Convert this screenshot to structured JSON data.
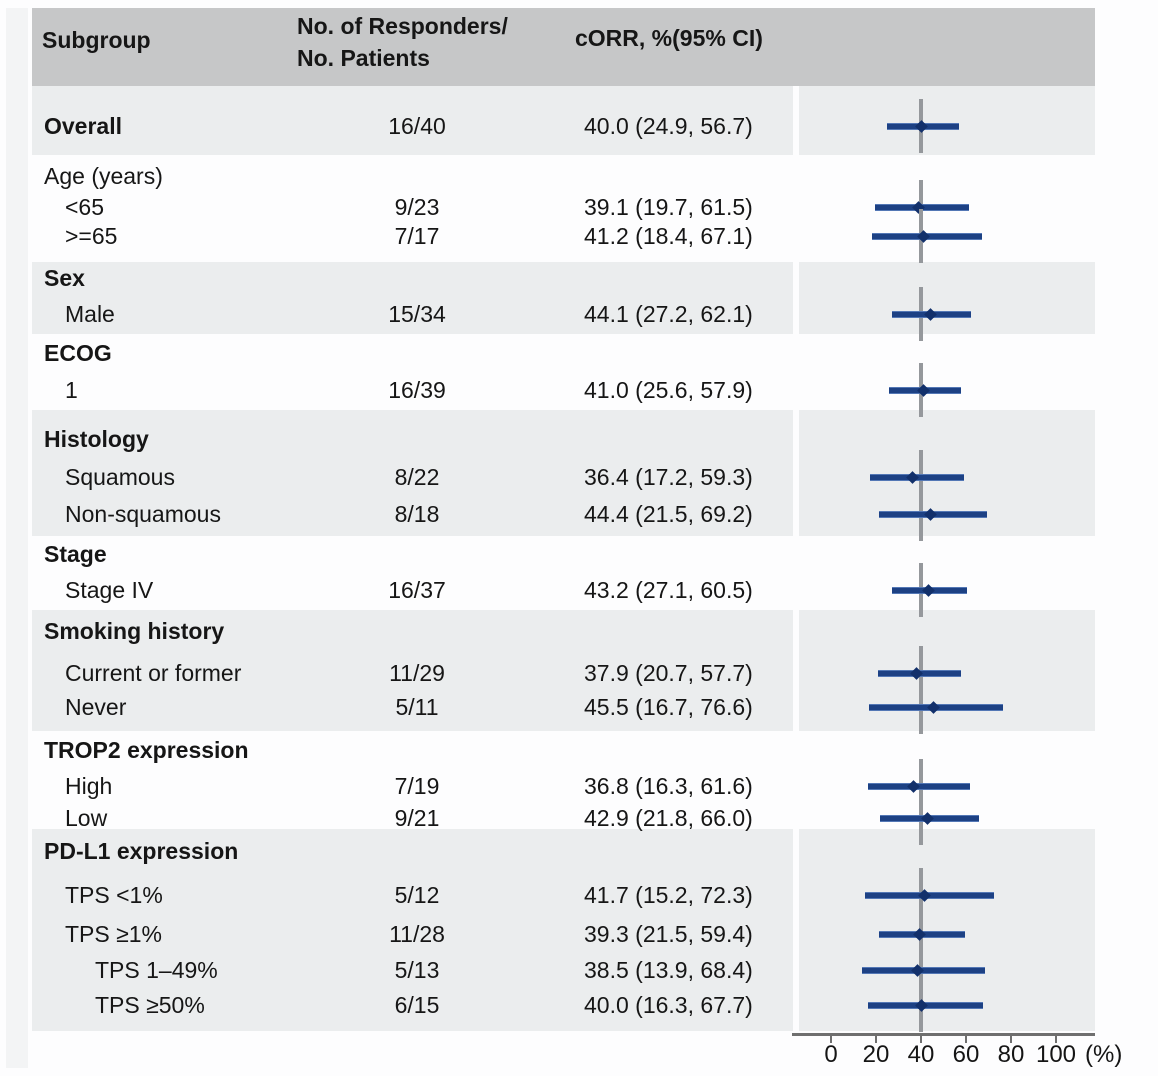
{
  "header": {
    "col_subgroup": "Subgroup",
    "col_responders_line1": "No. of Responders/",
    "col_responders_line2": "No. Patients",
    "col_orr": "cORR, %(95% CI)"
  },
  "axis": {
    "ticks": [
      0,
      20,
      40,
      60,
      80,
      100
    ],
    "unit_label": "(%)",
    "reference_value": 40
  },
  "colors": {
    "header_bg": "#c6c7c8",
    "stripe_bg": "#ebedee",
    "page_bg": "#fdfdfe",
    "text": "#161616",
    "ci_line": "#1d4184",
    "ci_marker": "#12306b",
    "reference_line": "#95989c",
    "axis_line": "#6f6f6f"
  },
  "chart_data": {
    "type": "forest",
    "title": "",
    "xlabel": "(%)",
    "x_ticks": [
      0,
      20,
      40,
      60,
      80,
      100
    ],
    "xlim": [
      0,
      100
    ],
    "reference_line": 40,
    "legend": null,
    "sections": [
      {
        "label": "Overall",
        "bold": true,
        "shaded": true,
        "rows": [
          {
            "label": null,
            "indent": 0,
            "n": "16/40",
            "est": 40.0,
            "lo": 24.9,
            "hi": 56.7,
            "orr_text": "40.0 (24.9, 56.7)"
          }
        ]
      },
      {
        "label": "Age (years)",
        "bold": false,
        "shaded": false,
        "rows": [
          {
            "label": "<65",
            "indent": 1,
            "n": "9/23",
            "est": 39.1,
            "lo": 19.7,
            "hi": 61.5,
            "orr_text": "39.1 (19.7, 61.5)"
          },
          {
            "label": ">=65",
            "indent": 1,
            "n": "7/17",
            "est": 41.2,
            "lo": 18.4,
            "hi": 67.1,
            "orr_text": "41.2 (18.4, 67.1)"
          }
        ]
      },
      {
        "label": "Sex",
        "bold": true,
        "shaded": true,
        "rows": [
          {
            "label": "Male",
            "indent": 1,
            "n": "15/34",
            "est": 44.1,
            "lo": 27.2,
            "hi": 62.1,
            "orr_text": "44.1 (27.2, 62.1)"
          }
        ]
      },
      {
        "label": "ECOG",
        "bold": true,
        "shaded": false,
        "rows": [
          {
            "label": "1",
            "indent": 1,
            "n": "16/39",
            "est": 41.0,
            "lo": 25.6,
            "hi": 57.9,
            "orr_text": "41.0 (25.6, 57.9)"
          }
        ]
      },
      {
        "label": "Histology",
        "bold": true,
        "shaded": true,
        "rows": [
          {
            "label": "Squamous",
            "indent": 1,
            "n": "8/22",
            "est": 36.4,
            "lo": 17.2,
            "hi": 59.3,
            "orr_text": "36.4 (17.2, 59.3)"
          },
          {
            "label": "Non-squamous",
            "indent": 1,
            "n": "8/18",
            "est": 44.4,
            "lo": 21.5,
            "hi": 69.2,
            "orr_text": "44.4 (21.5, 69.2)"
          }
        ]
      },
      {
        "label": "Stage",
        "bold": true,
        "shaded": false,
        "rows": [
          {
            "label": "Stage IV",
            "indent": 1,
            "n": "16/37",
            "est": 43.2,
            "lo": 27.1,
            "hi": 60.5,
            "orr_text": "43.2 (27.1, 60.5)"
          }
        ]
      },
      {
        "label": "Smoking history",
        "bold": true,
        "shaded": true,
        "rows": [
          {
            "label": "Current or former",
            "indent": 1,
            "n": "11/29",
            "est": 37.9,
            "lo": 20.7,
            "hi": 57.7,
            "orr_text": "37.9 (20.7, 57.7)"
          },
          {
            "label": "Never",
            "indent": 1,
            "n": "5/11",
            "est": 45.5,
            "lo": 16.7,
            "hi": 76.6,
            "orr_text": "45.5 (16.7, 76.6)"
          }
        ]
      },
      {
        "label": "TROP2 expression",
        "bold": true,
        "shaded": false,
        "rows": [
          {
            "label": "High",
            "indent": 1,
            "n": "7/19",
            "est": 36.8,
            "lo": 16.3,
            "hi": 61.6,
            "orr_text": "36.8 (16.3, 61.6)"
          },
          {
            "label": "Low",
            "indent": 1,
            "n": "9/21",
            "est": 42.9,
            "lo": 21.8,
            "hi": 66.0,
            "orr_text": "42.9 (21.8, 66.0)"
          }
        ]
      },
      {
        "label": "PD-L1 expression",
        "bold": true,
        "shaded": true,
        "rows": [
          {
            "label": "TPS <1%",
            "indent": 1,
            "n": "5/12",
            "est": 41.7,
            "lo": 15.2,
            "hi": 72.3,
            "orr_text": "41.7 (15.2, 72.3)"
          },
          {
            "label": "TPS ≥1%",
            "indent": 1,
            "n": "11/28",
            "est": 39.3,
            "lo": 21.5,
            "hi": 59.4,
            "orr_text": "39.3 (21.5, 59.4)"
          },
          {
            "label": "TPS 1–49%",
            "indent": 2,
            "n": "5/13",
            "est": 38.5,
            "lo": 13.9,
            "hi": 68.4,
            "orr_text": "38.5 (13.9, 68.4)"
          },
          {
            "label": "TPS ≥50%",
            "indent": 2,
            "n": "6/15",
            "est": 40.0,
            "lo": 16.3,
            "hi": 67.7,
            "orr_text": "40.0 (16.3, 67.7)"
          }
        ]
      }
    ]
  }
}
